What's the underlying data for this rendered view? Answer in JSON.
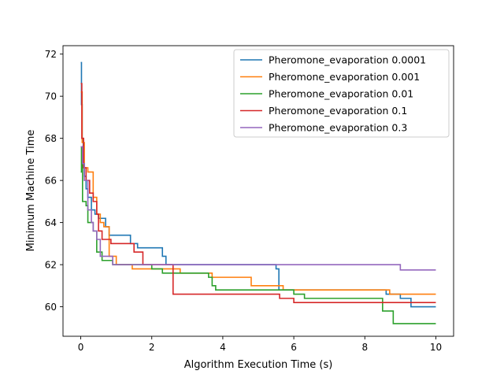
{
  "chart_data": {
    "type": "line",
    "title": "",
    "xlabel": "Algorithm Execution Time (s)",
    "ylabel": "Minimum Machine Time",
    "xlim": [
      -0.5,
      10.5
    ],
    "ylim": [
      58.6,
      72.4
    ],
    "xticks": [
      0,
      2,
      4,
      6,
      8,
      10
    ],
    "xtick_labels": [
      "0",
      "2",
      "4",
      "6",
      "8",
      "10"
    ],
    "yticks": [
      60,
      62,
      64,
      66,
      68,
      70,
      72
    ],
    "ytick_labels": [
      "60",
      "62",
      "64",
      "66",
      "68",
      "70",
      "72"
    ],
    "grid": false,
    "legend_position": "upper right",
    "series": [
      {
        "name": "Pheromone_evaporation 0.0001",
        "color": "#1f77b4",
        "step": "post",
        "points": [
          [
            0,
            71.6
          ],
          [
            0.02,
            69.6
          ],
          [
            0.04,
            68.0
          ],
          [
            0.07,
            66.8
          ],
          [
            0.1,
            66.2
          ],
          [
            0.15,
            65.6
          ],
          [
            0.2,
            65.2
          ],
          [
            0.3,
            64.6
          ],
          [
            0.4,
            64.4
          ],
          [
            0.5,
            64.2
          ],
          [
            0.7,
            63.8
          ],
          [
            0.8,
            63.4
          ],
          [
            1.0,
            63.4
          ],
          [
            1.4,
            63.0
          ],
          [
            1.6,
            62.8
          ],
          [
            2.3,
            62.4
          ],
          [
            2.4,
            62.0
          ],
          [
            5.5,
            61.8
          ],
          [
            5.58,
            60.8
          ],
          [
            8.6,
            60.6
          ],
          [
            9.0,
            60.4
          ],
          [
            9.3,
            60.0
          ],
          [
            10,
            60.0
          ]
        ]
      },
      {
        "name": "Pheromone_evaporation 0.001",
        "color": "#ff7f0e",
        "step": "post",
        "points": [
          [
            0,
            70.2
          ],
          [
            0.04,
            67.8
          ],
          [
            0.1,
            66.6
          ],
          [
            0.2,
            66.4
          ],
          [
            0.35,
            65.2
          ],
          [
            0.45,
            64.4
          ],
          [
            0.55,
            64.0
          ],
          [
            0.65,
            63.8
          ],
          [
            0.8,
            62.4
          ],
          [
            1.0,
            62.0
          ],
          [
            1.45,
            61.8
          ],
          [
            2.8,
            61.6
          ],
          [
            3.7,
            61.4
          ],
          [
            4.8,
            61.0
          ],
          [
            5.7,
            60.8
          ],
          [
            8.7,
            60.6
          ],
          [
            10,
            60.6
          ]
        ]
      },
      {
        "name": "Pheromone_evaporation 0.01",
        "color": "#2ca02c",
        "step": "post",
        "points": [
          [
            0,
            66.4
          ],
          [
            0.02,
            67.6
          ],
          [
            0.05,
            65.0
          ],
          [
            0.15,
            64.8
          ],
          [
            0.2,
            64.0
          ],
          [
            0.35,
            63.6
          ],
          [
            0.45,
            62.6
          ],
          [
            0.6,
            62.2
          ],
          [
            0.9,
            62.0
          ],
          [
            2.0,
            61.8
          ],
          [
            2.3,
            61.6
          ],
          [
            3.6,
            61.4
          ],
          [
            3.7,
            61.0
          ],
          [
            3.8,
            60.8
          ],
          [
            6.0,
            60.6
          ],
          [
            6.3,
            60.4
          ],
          [
            8.5,
            59.8
          ],
          [
            8.8,
            59.2
          ],
          [
            10,
            59.2
          ]
        ]
      },
      {
        "name": "Pheromone_evaporation 0.1",
        "color": "#d62728",
        "step": "post",
        "points": [
          [
            0,
            70.6
          ],
          [
            0.03,
            68.0
          ],
          [
            0.08,
            66.6
          ],
          [
            0.15,
            66.0
          ],
          [
            0.25,
            65.4
          ],
          [
            0.35,
            65.0
          ],
          [
            0.45,
            64.4
          ],
          [
            0.5,
            63.6
          ],
          [
            0.6,
            63.2
          ],
          [
            0.85,
            63.0
          ],
          [
            1.5,
            62.6
          ],
          [
            1.75,
            62.0
          ],
          [
            2.6,
            60.6
          ],
          [
            5.6,
            60.4
          ],
          [
            6.0,
            60.2
          ],
          [
            10,
            60.2
          ]
        ]
      },
      {
        "name": "Pheromone_evaporation 0.3",
        "color": "#9467bd",
        "step": "post",
        "points": [
          [
            0,
            67.6
          ],
          [
            0.05,
            66.8
          ],
          [
            0.1,
            66.0
          ],
          [
            0.2,
            64.6
          ],
          [
            0.3,
            64.0
          ],
          [
            0.35,
            63.6
          ],
          [
            0.45,
            63.2
          ],
          [
            0.55,
            62.4
          ],
          [
            0.9,
            62.0
          ],
          [
            9.0,
            61.75
          ],
          [
            10,
            61.75
          ]
        ]
      }
    ]
  }
}
